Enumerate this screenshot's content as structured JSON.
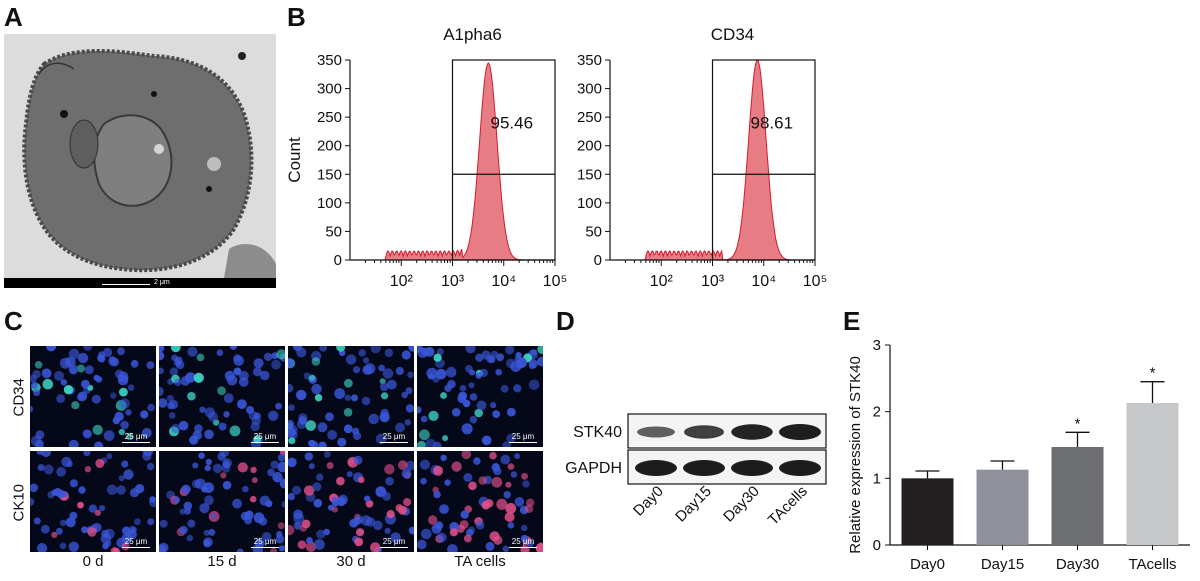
{
  "panels": {
    "a": "A",
    "b": "B",
    "c": "C",
    "d": "D",
    "e": "E"
  },
  "panel_a": {
    "scale_label": "2 μm"
  },
  "panel_c": {
    "rows": [
      "CD34",
      "CK10"
    ],
    "columns": [
      "0 d",
      "15 d",
      "30 d",
      "TA cells"
    ],
    "scale_label": "25 μm",
    "colors": {
      "nuclei": "#3a56d8",
      "cd34_stain": "#3fd6c6",
      "ck10_stain": "#e0508a"
    }
  },
  "panel_d": {
    "proteins": [
      "STK40",
      "GAPDH"
    ],
    "lanes": [
      "Day0",
      "Day15",
      "Day30",
      "TAcells"
    ],
    "stk40_intensity": [
      0.5,
      0.75,
      0.95,
      1.0
    ],
    "gapdh_intensity": [
      1.0,
      1.0,
      1.0,
      1.0
    ]
  },
  "chart_data": [
    {
      "type": "histogram",
      "title": "A1pha6",
      "ylabel": "Count",
      "xlabel": "",
      "x_scale": "log",
      "xlim": [
        10,
        100000
      ],
      "ylim": [
        0,
        350
      ],
      "x_ticks": [
        "10²",
        "10³",
        "10⁴",
        "10⁵"
      ],
      "y_ticks": [
        0,
        50,
        100,
        150,
        200,
        250,
        300,
        350
      ],
      "gate_x": 1000,
      "gate_y": 150,
      "annotation": "95.46",
      "peak_x": 5000,
      "peak_y": 345,
      "color": "#e0505c"
    },
    {
      "type": "histogram",
      "title": "CD34",
      "ylabel": "",
      "xlabel": "",
      "x_scale": "log",
      "xlim": [
        10,
        100000
      ],
      "ylim": [
        0,
        350
      ],
      "x_ticks": [
        "10²",
        "10³",
        "10⁴",
        "10⁵"
      ],
      "y_ticks": [
        0,
        50,
        100,
        150,
        200,
        250,
        300,
        350
      ],
      "gate_x": 1000,
      "gate_y": 150,
      "annotation": "98.61",
      "peak_x": 7500,
      "peak_y": 350,
      "color": "#e0505c"
    },
    {
      "type": "bar",
      "title": "",
      "xlabel": "",
      "ylabel": "Relative expression of STK40",
      "categories": [
        "Day0",
        "Day15",
        "Day30",
        "TAcells"
      ],
      "values": [
        1.0,
        1.13,
        1.47,
        2.13
      ],
      "errors": [
        0.11,
        0.13,
        0.22,
        0.32
      ],
      "significance": [
        "",
        "",
        "*",
        "*"
      ],
      "ylim": [
        0,
        3
      ],
      "y_ticks": [
        0,
        1,
        2,
        3
      ],
      "colors": [
        "#231f20",
        "#8e9199",
        "#6d6e72",
        "#c6c7c9"
      ]
    }
  ]
}
